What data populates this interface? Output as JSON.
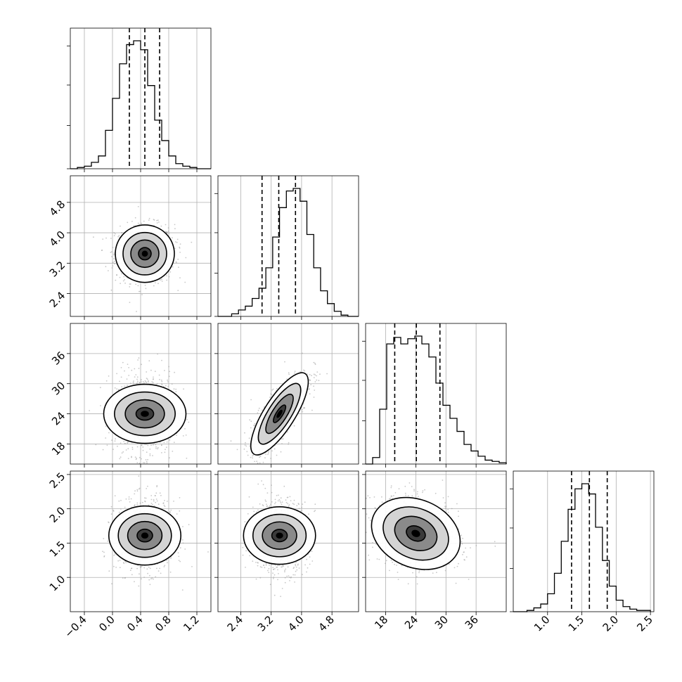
{
  "chart_data": {
    "type": "corner",
    "grid": true,
    "parameters": [
      {
        "range": [
          -0.6,
          1.4
        ],
        "ticks": [
          -0.4,
          0.0,
          0.4,
          0.8,
          1.2
        ],
        "tick_labels": [
          "−0.4",
          "0.0",
          "0.4",
          "0.8",
          "1.2"
        ],
        "quantiles": [
          0.24,
          0.46,
          0.67
        ]
      },
      {
        "range": [
          1.8,
          5.5
        ],
        "ticks": [
          2.4,
          3.2,
          4.0,
          4.8
        ],
        "tick_labels": [
          "2.4",
          "3.2",
          "4.0",
          "4.8"
        ],
        "quantiles": [
          2.96,
          3.4,
          3.84
        ]
      },
      {
        "range": [
          14,
          42
        ],
        "ticks": [
          18,
          24,
          30,
          36
        ],
        "tick_labels": [
          "18",
          "24",
          "30",
          "36"
        ],
        "quantiles": [
          19.8,
          24.1,
          28.8
        ]
      },
      {
        "range": [
          0.5,
          2.55
        ],
        "ticks": [
          1.0,
          1.5,
          2.0,
          2.5
        ],
        "tick_labels": [
          "1.0",
          "1.5",
          "2.0",
          "2.5"
        ],
        "quantiles": [
          1.35,
          1.61,
          1.87
        ]
      }
    ],
    "histograms": [
      {
        "edges_start": -0.6,
        "bin_width": 0.1,
        "counts": [
          0,
          0.01,
          0.02,
          0.05,
          0.1,
          0.3,
          0.55,
          0.82,
          0.97,
          1.0,
          0.93,
          0.65,
          0.38,
          0.22,
          0.1,
          0.04,
          0.02,
          0.01,
          0,
          0
        ]
      },
      {
        "edges_start": 1.8,
        "bin_width": 0.18,
        "counts": [
          0,
          0,
          0.02,
          0.05,
          0.08,
          0.14,
          0.22,
          0.38,
          0.62,
          0.85,
          0.98,
          1.0,
          0.9,
          0.64,
          0.38,
          0.2,
          0.1,
          0.04,
          0.01,
          0,
          0
        ]
      },
      {
        "edges_start": 14,
        "bin_width": 1.4,
        "counts": [
          0,
          0.05,
          0.42,
          0.92,
          0.97,
          0.92,
          0.96,
          0.98,
          0.92,
          0.82,
          0.62,
          0.45,
          0.35,
          0.25,
          0.15,
          0.1,
          0.06,
          0.03,
          0.02,
          0.01
        ]
      },
      {
        "edges_start": 0.5,
        "bin_width": 0.1,
        "counts": [
          0,
          0,
          0.01,
          0.03,
          0.06,
          0.14,
          0.3,
          0.55,
          0.8,
          0.96,
          1.0,
          0.92,
          0.66,
          0.4,
          0.2,
          0.09,
          0.04,
          0.02,
          0.01,
          0.01
        ]
      }
    ],
    "pairs": [
      {
        "row": 1,
        "col": 0,
        "mean": [
          0.46,
          3.45
        ],
        "std": [
          0.2,
          0.36
        ],
        "corr": 0.0
      },
      {
        "row": 2,
        "col": 0,
        "mean": [
          0.46,
          24.0
        ],
        "std": [
          0.2,
          3.9
        ],
        "corr": 0.0
      },
      {
        "row": 2,
        "col": 1,
        "mean": [
          3.42,
          24.0
        ],
        "std": [
          0.36,
          3.9
        ],
        "corr": 0.78
      },
      {
        "row": 3,
        "col": 0,
        "mean": [
          0.46,
          1.61
        ],
        "std": [
          0.2,
          0.25
        ],
        "corr": 0.0
      },
      {
        "row": 3,
        "col": 1,
        "mean": [
          3.42,
          1.61
        ],
        "std": [
          0.36,
          0.25
        ],
        "corr": 0.0
      },
      {
        "row": 3,
        "col": 2,
        "mean": [
          24.0,
          1.64
        ],
        "std": [
          4.2,
          0.25
        ],
        "corr": -0.22
      }
    ]
  }
}
